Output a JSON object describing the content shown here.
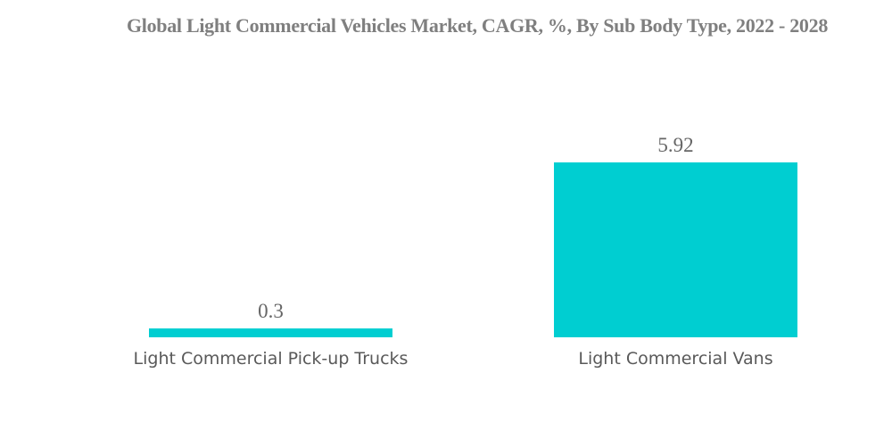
{
  "chart_data": {
    "type": "bar",
    "title": "Global Light Commercial Vehicles Market, CAGR, %, By Sub Body Type, 2022 - 2028",
    "categories": [
      "Light Commercial Pick-up Trucks",
      "Light Commercial Vans"
    ],
    "values": [
      0.3,
      5.92
    ],
    "value_labels": [
      "0.3",
      "5.92"
    ],
    "xlabel": "",
    "ylabel": "",
    "ylim": [
      0,
      5.92
    ],
    "grid": false,
    "legend": "none",
    "colors": {
      "bar": "#00CED1",
      "title": "#7f7f7f",
      "labels": "#595959"
    }
  }
}
